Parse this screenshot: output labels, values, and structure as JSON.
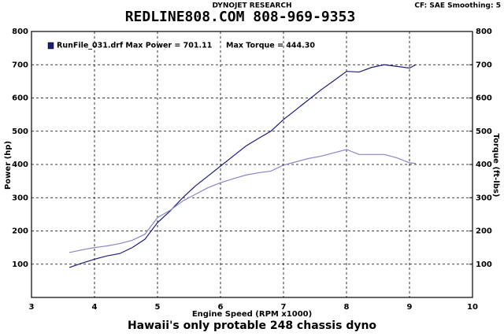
{
  "chart_data": {
    "type": "line",
    "header": "DYNOJET RESEARCH",
    "title": "REDLINE808.COM   808-969-9353",
    "settings_note": "CF: SAE  Smoothing: 5",
    "caption": "Hawaii's only protable 248 chassis dyno",
    "xlabel": "Engine Speed (RPM x1000)",
    "ylabel": "Power (hp)",
    "y2label": "Torque (ft-lbs)",
    "x": [
      3.6,
      3.8,
      4.0,
      4.2,
      4.4,
      4.6,
      4.8,
      5.0,
      5.2,
      5.4,
      5.6,
      5.8,
      6.0,
      6.2,
      6.4,
      6.6,
      6.8,
      7.0,
      7.2,
      7.4,
      7.6,
      7.8,
      8.0,
      8.2,
      8.4,
      8.6,
      8.8,
      9.0,
      9.1
    ],
    "series": [
      {
        "name": "RunFile_031.drf Max Power = 701.11",
        "color": "#1c1c7a",
        "values": [
          90,
          103,
          115,
          125,
          132,
          150,
          175,
          225,
          260,
          300,
          335,
          365,
          395,
          425,
          455,
          478,
          500,
          535,
          565,
          595,
          625,
          652,
          680,
          678,
          692,
          700,
          695,
          690,
          700
        ]
      },
      {
        "name": "Max Torque = 444.30",
        "color": "#8a85c8",
        "axis": "y2",
        "values": [
          135,
          143,
          150,
          155,
          162,
          172,
          190,
          240,
          262,
          290,
          310,
          330,
          345,
          357,
          368,
          375,
          380,
          398,
          408,
          418,
          425,
          435,
          445,
          430,
          430,
          430,
          420,
          405,
          403
        ]
      }
    ],
    "xlim": [
      3,
      10
    ],
    "xticks": [
      3,
      4,
      5,
      6,
      7,
      8,
      9,
      10
    ],
    "ylim": [
      0,
      800
    ],
    "yticks": [
      100,
      200,
      300,
      400,
      500,
      600,
      700,
      800
    ],
    "y2lim": [
      0,
      800
    ],
    "y2ticks": [
      100,
      200,
      300,
      400,
      500,
      600,
      700,
      800
    ],
    "grid": true
  }
}
